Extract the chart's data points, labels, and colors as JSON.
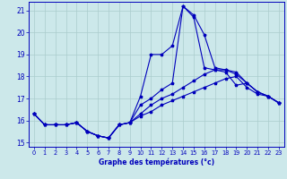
{
  "xlabel": "Graphe des températures (°c)",
  "bg_color": "#cce8ea",
  "line_color": "#0000bb",
  "grid_color": "#aacccc",
  "xlim": [
    -0.5,
    23.5
  ],
  "ylim": [
    14.8,
    21.4
  ],
  "xticks": [
    0,
    1,
    2,
    3,
    4,
    5,
    6,
    7,
    8,
    9,
    10,
    11,
    12,
    13,
    14,
    15,
    16,
    17,
    18,
    19,
    20,
    21,
    22,
    23
  ],
  "yticks": [
    15,
    16,
    17,
    18,
    19,
    20,
    21
  ],
  "series": [
    {
      "x": [
        0,
        1,
        2,
        3,
        4,
        5,
        6,
        7,
        8,
        9,
        10,
        11,
        12,
        13,
        14,
        15,
        16,
        17,
        18,
        19,
        20,
        21,
        22,
        23
      ],
      "y": [
        16.3,
        15.8,
        15.8,
        15.8,
        15.9,
        15.5,
        15.3,
        15.2,
        15.8,
        15.9,
        16.2,
        16.4,
        16.7,
        16.9,
        17.1,
        17.3,
        17.5,
        17.7,
        17.9,
        18.0,
        17.5,
        17.2,
        17.1,
        16.8
      ]
    },
    {
      "x": [
        0,
        1,
        2,
        3,
        4,
        5,
        6,
        7,
        8,
        9,
        10,
        11,
        12,
        13,
        14,
        15,
        16,
        17,
        18,
        19,
        20,
        21,
        22,
        23
      ],
      "y": [
        16.3,
        15.8,
        15.8,
        15.8,
        15.9,
        15.5,
        15.3,
        15.2,
        15.8,
        15.9,
        16.3,
        16.7,
        17.0,
        17.2,
        17.5,
        17.8,
        18.1,
        18.3,
        18.3,
        18.1,
        17.7,
        17.3,
        17.1,
        16.8
      ]
    },
    {
      "x": [
        0,
        1,
        2,
        3,
        4,
        5,
        6,
        7,
        8,
        9,
        10,
        11,
        12,
        13,
        14,
        15,
        16,
        17,
        18,
        19,
        20,
        21,
        22,
        23
      ],
      "y": [
        16.3,
        15.8,
        15.8,
        15.8,
        15.9,
        15.5,
        15.3,
        15.2,
        15.8,
        15.9,
        16.7,
        17.0,
        17.4,
        17.7,
        21.2,
        20.7,
        18.4,
        18.3,
        18.2,
        17.6,
        17.7,
        17.3,
        17.1,
        16.8
      ]
    },
    {
      "x": [
        0,
        1,
        2,
        3,
        4,
        5,
        6,
        7,
        8,
        9,
        10,
        11,
        12,
        13,
        14,
        15,
        16,
        17,
        18,
        19,
        20,
        21,
        22,
        23
      ],
      "y": [
        16.3,
        15.8,
        15.8,
        15.8,
        15.9,
        15.5,
        15.3,
        15.2,
        15.8,
        15.9,
        17.1,
        19.0,
        19.0,
        19.4,
        21.2,
        20.8,
        19.9,
        18.4,
        18.3,
        18.2,
        17.7,
        17.3,
        17.1,
        16.8
      ]
    }
  ]
}
